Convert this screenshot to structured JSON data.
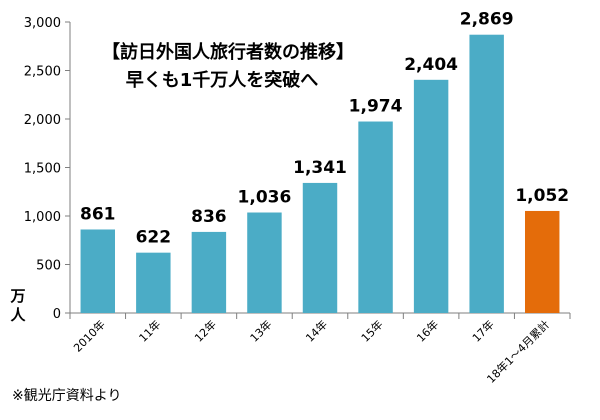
{
  "chart_data": {
    "type": "bar",
    "title_lines": [
      "【訪日外国人旅行者数の推移】",
      "早くも1千万人を突破へ"
    ],
    "ylabel_chars": [
      "万",
      "人"
    ],
    "ylim": [
      0,
      3000
    ],
    "yticks": [
      0,
      500,
      1000,
      1500,
      2000,
      2500,
      3000
    ],
    "ytick_labels": [
      "0",
      "500",
      "1,000",
      "1,500",
      "2,000",
      "2,500",
      "3,000"
    ],
    "categories": [
      "2010年",
      "11年",
      "12年",
      "13年",
      "14年",
      "15年",
      "16年",
      "17年",
      "18年1～4月累計"
    ],
    "values": [
      861,
      622,
      836,
      1036,
      1341,
      1974,
      2404,
      2869,
      1052
    ],
    "value_labels": [
      "861",
      "622",
      "836",
      "1,036",
      "1,341",
      "1,974",
      "2,404",
      "2,869",
      "1,052"
    ],
    "colors": [
      "#4BACC6",
      "#4BACC6",
      "#4BACC6",
      "#4BACC6",
      "#4BACC6",
      "#4BACC6",
      "#4BACC6",
      "#4BACC6",
      "#E46C0A"
    ],
    "grid": false,
    "source_note": "※観光庁資料より"
  }
}
